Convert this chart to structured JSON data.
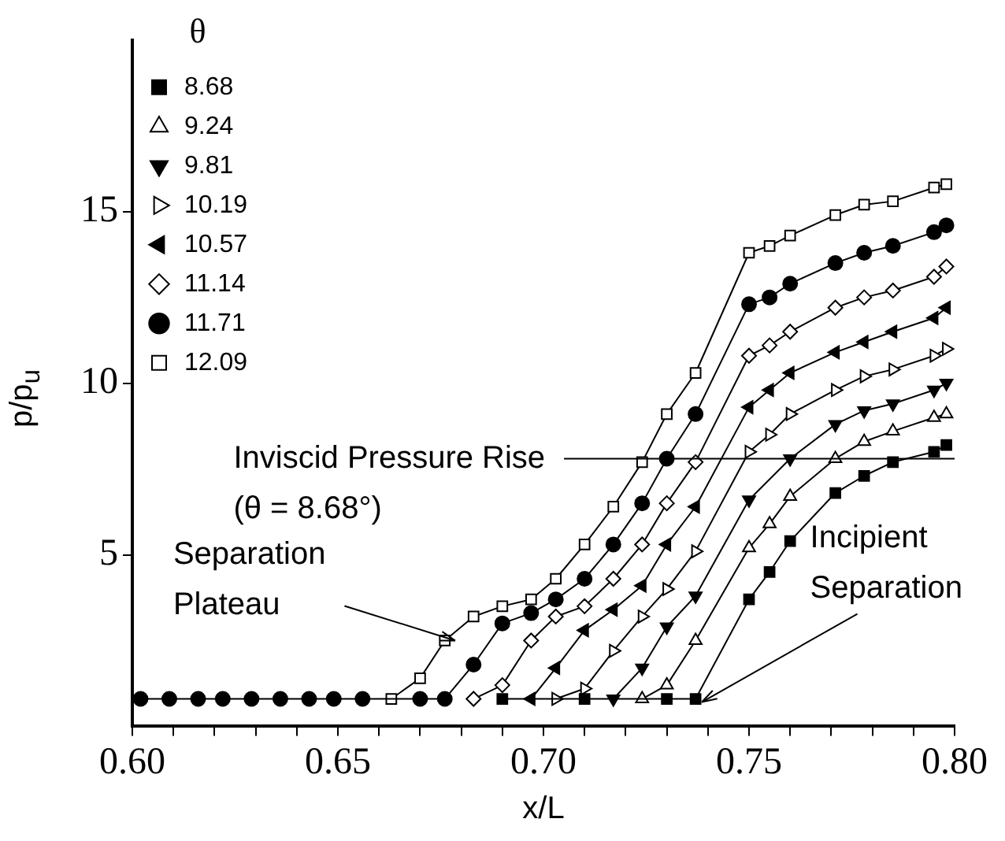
{
  "chart_data": {
    "type": "line",
    "xlabel": "x/L",
    "ylabel": "p/p$_{u}$",
    "legend_title": "θ",
    "legend": "top left",
    "grid": false,
    "line_style": "solid",
    "xlim": [
      0.6,
      0.8
    ],
    "ylim": [
      0,
      20
    ],
    "xticks": [
      {
        "value": 0.6,
        "label": "0.60"
      },
      {
        "value": 0.61,
        "label": null
      },
      {
        "value": 0.62,
        "label": null
      },
      {
        "value": 0.63,
        "label": null
      },
      {
        "value": 0.64,
        "label": null
      },
      {
        "value": 0.65,
        "label": "0.65"
      },
      {
        "value": 0.66,
        "label": null
      },
      {
        "value": 0.67,
        "label": null
      },
      {
        "value": 0.68,
        "label": null
      },
      {
        "value": 0.69,
        "label": null
      },
      {
        "value": 0.7,
        "label": "0.70"
      },
      {
        "value": 0.71,
        "label": null
      },
      {
        "value": 0.72,
        "label": null
      },
      {
        "value": 0.73,
        "label": null
      },
      {
        "value": 0.74,
        "label": null
      },
      {
        "value": 0.75,
        "label": "0.75"
      },
      {
        "value": 0.76,
        "label": null
      },
      {
        "value": 0.77,
        "label": null
      },
      {
        "value": 0.78,
        "label": null
      },
      {
        "value": 0.79,
        "label": null
      },
      {
        "value": 0.8,
        "label": "0.80"
      }
    ],
    "yticks": [
      5,
      10,
      15
    ],
    "series": [
      {
        "name": "8.68",
        "color": "#000000",
        "marker": "square",
        "x": [
          0.69,
          0.71,
          0.73,
          0.737,
          0.75,
          0.755,
          0.76,
          0.771,
          0.778,
          0.785,
          0.795,
          0.798
        ],
        "values": [
          0.8,
          0.8,
          0.8,
          0.8,
          3.7,
          4.5,
          5.4,
          6.8,
          7.3,
          7.7,
          8.0,
          8.2
        ]
      },
      {
        "name": "9.24",
        "color": "#000000",
        "marker": "triangle",
        "x": [
          0.724,
          0.73,
          0.737,
          0.75,
          0.755,
          0.76,
          0.771,
          0.778,
          0.785,
          0.795,
          0.798
        ],
        "values": [
          0.8,
          1.2,
          2.5,
          5.2,
          5.9,
          6.7,
          7.8,
          8.3,
          8.6,
          9.0,
          9.1
        ]
      },
      {
        "name": "9.81",
        "color": "#000000",
        "marker": "triangle",
        "x": [
          0.717,
          0.724,
          0.73,
          0.737,
          0.75,
          0.76,
          0.771,
          0.778,
          0.785,
          0.795,
          0.798
        ],
        "values": [
          0.8,
          1.7,
          2.9,
          3.8,
          6.6,
          7.8,
          8.8,
          9.2,
          9.4,
          9.8,
          10.0
        ]
      },
      {
        "name": "10.19",
        "color": "#000000",
        "marker": "triangle",
        "x": [
          0.703,
          0.71,
          0.717,
          0.724,
          0.73,
          0.737,
          0.75,
          0.755,
          0.76,
          0.771,
          0.778,
          0.785,
          0.795,
          0.798
        ],
        "values": [
          0.8,
          1.1,
          2.2,
          3.2,
          4.0,
          5.1,
          8.0,
          8.5,
          9.1,
          9.8,
          10.2,
          10.4,
          10.8,
          11.0
        ]
      },
      {
        "name": "10.57",
        "color": "#000000",
        "marker": "triangle",
        "x": [
          0.697,
          0.703,
          0.71,
          0.717,
          0.724,
          0.73,
          0.737,
          0.75,
          0.755,
          0.76,
          0.771,
          0.778,
          0.785,
          0.795,
          0.798
        ],
        "values": [
          0.8,
          1.7,
          2.8,
          3.4,
          4.1,
          5.3,
          6.4,
          9.3,
          9.8,
          10.3,
          10.9,
          11.2,
          11.5,
          11.9,
          12.2
        ]
      },
      {
        "name": "11.14",
        "color": "#000000",
        "marker": "diamond",
        "x": [
          0.683,
          0.69,
          0.697,
          0.703,
          0.71,
          0.717,
          0.724,
          0.73,
          0.737,
          0.75,
          0.755,
          0.76,
          0.771,
          0.778,
          0.785,
          0.795,
          0.798
        ],
        "values": [
          0.8,
          1.2,
          2.5,
          3.2,
          3.5,
          4.3,
          5.3,
          6.5,
          7.7,
          10.8,
          11.1,
          11.5,
          12.2,
          12.5,
          12.7,
          13.1,
          13.4
        ]
      },
      {
        "name": "11.71",
        "color": "#000000",
        "marker": "circle",
        "x": [
          0.602,
          0.609,
          0.616,
          0.622,
          0.629,
          0.636,
          0.643,
          0.649,
          0.656,
          0.67,
          0.676,
          0.683,
          0.69,
          0.697,
          0.703,
          0.71,
          0.717,
          0.724,
          0.73,
          0.737,
          0.75,
          0.755,
          0.76,
          0.771,
          0.778,
          0.785,
          0.795,
          0.798
        ],
        "values": [
          0.8,
          0.8,
          0.8,
          0.8,
          0.8,
          0.8,
          0.8,
          0.8,
          0.8,
          0.8,
          0.8,
          1.8,
          3.0,
          3.3,
          3.7,
          4.3,
          5.3,
          6.5,
          7.8,
          9.1,
          12.3,
          12.5,
          12.9,
          13.5,
          13.8,
          14.0,
          14.4,
          14.6
        ]
      },
      {
        "name": "12.09",
        "color": "#000000",
        "marker": "square",
        "x": [
          0.663,
          0.67,
          0.676,
          0.683,
          0.69,
          0.697,
          0.703,
          0.71,
          0.717,
          0.724,
          0.73,
          0.737,
          0.75,
          0.755,
          0.76,
          0.771,
          0.778,
          0.785,
          0.795,
          0.798
        ],
        "values": [
          0.8,
          1.4,
          2.5,
          3.2,
          3.5,
          3.7,
          4.3,
          5.3,
          6.4,
          7.7,
          9.1,
          10.3,
          13.8,
          14.0,
          14.3,
          14.9,
          15.2,
          15.3,
          15.7,
          15.8
        ]
      }
    ],
    "ref_lines": [
      {
        "axis": "y",
        "value": 7.8,
        "color": "#000000"
      }
    ],
    "annotations": [
      {
        "text": "Inviscid Pressure Rise (θ = 8.68°)",
        "x": 0.705,
        "y": 7.8
      },
      {
        "text": "Separation Plateau",
        "x": 0.677,
        "y": 2.5
      },
      {
        "text": "Incipient Separation",
        "x": 0.737,
        "y": 0.8
      }
    ]
  }
}
